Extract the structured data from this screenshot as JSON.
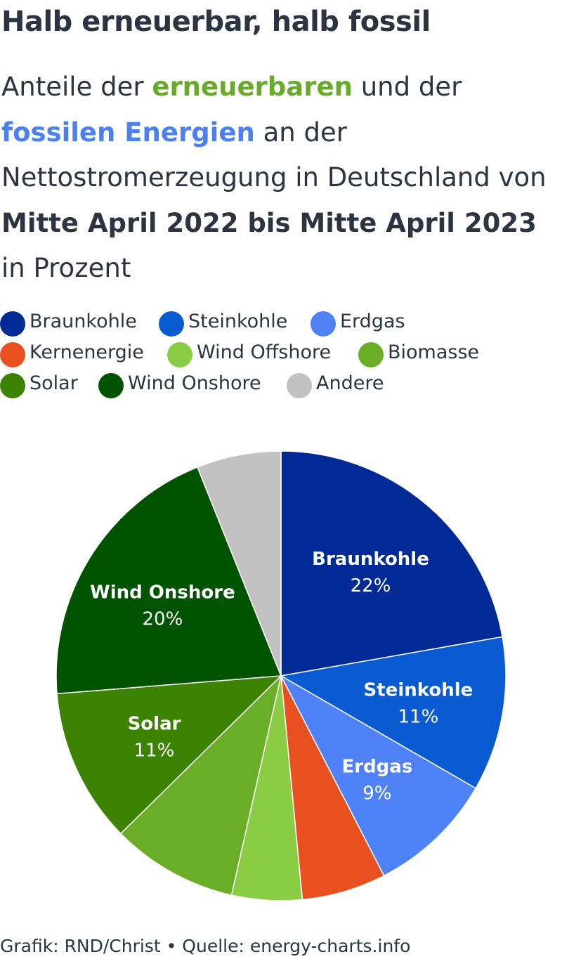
{
  "title": "Halb erneuerbar, halb fossil",
  "subtitle": {
    "part1": "Anteile der ",
    "renewable": "erneuerbaren",
    "part2": " und der ",
    "fossil": "fossilen Energien",
    "part3": " an der Nettostromerzeugung in Deutschland von ",
    "period": "Mitte April 2022 bis Mitte April 2023",
    "part4": " in Prozent"
  },
  "colors": {
    "renewable_highlight": "#6aaa2b",
    "fossil_highlight": "#4a80f0",
    "text": "#2b3440"
  },
  "chart_data": {
    "type": "pie",
    "start": "12 o'clock, clockwise",
    "categories": [
      "Braunkohle",
      "Steinkohle",
      "Erdgas",
      "Kernenergie",
      "Wind Offshore",
      "Biomasse",
      "Solar",
      "Wind Onshore",
      "Andere"
    ],
    "values": [
      22,
      11,
      9,
      6,
      5,
      9,
      11,
      20,
      6
    ],
    "colors": [
      "#002a95",
      "#0a5ad2",
      "#4f82f7",
      "#e8501f",
      "#8acd45",
      "#6aad27",
      "#3c8203",
      "#005300",
      "#c2c2c2"
    ],
    "data_labels": [
      {
        "name": "Braunkohle",
        "value": "22%"
      },
      {
        "name": "Steinkohle",
        "value": "11%"
      },
      {
        "name": "Erdgas",
        "value": "9%"
      },
      {
        "name": "Solar",
        "value": "11%"
      },
      {
        "name": "Wind Onshore",
        "value": "20%"
      }
    ],
    "legend": {
      "placement": "top",
      "rows": [
        [
          {
            "label": "Braunkohle",
            "color": "#002a95"
          },
          {
            "label": "Steinkohle",
            "color": "#0a5ad2"
          },
          {
            "label": "Erdgas",
            "color": "#4f82f7"
          }
        ],
        [
          {
            "label": "Kernenergie",
            "color": "#e8501f"
          },
          {
            "label": "Wind Offshore",
            "color": "#8acd45"
          },
          {
            "label": "Biomasse",
            "color": "#6aad27"
          }
        ],
        [
          {
            "label": "Solar",
            "color": "#3c8203"
          },
          {
            "label": "Wind Onshore",
            "color": "#005300"
          },
          {
            "label": "Andere",
            "color": "#c2c2c2"
          }
        ]
      ]
    }
  },
  "footer": "Grafik: RND/Christ • Quelle: energy-charts.info"
}
